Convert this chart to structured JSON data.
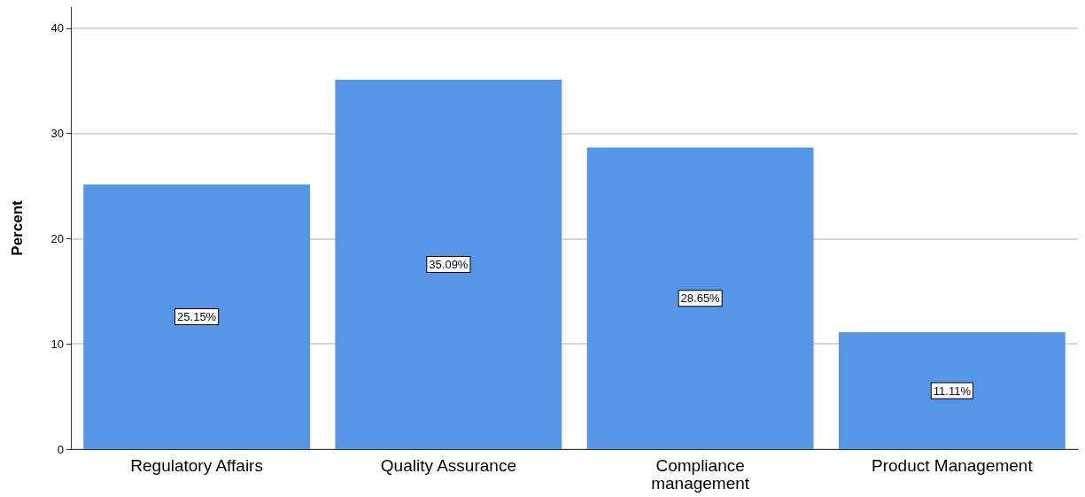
{
  "chart_data": {
    "type": "bar",
    "ylabel": "Percent",
    "categories": [
      "Regulatory Affairs",
      "Quality Assurance",
      "Compliance\nmanagement",
      "Product Management"
    ],
    "values": [
      25.15,
      35.09,
      28.65,
      11.11
    ],
    "value_labels": [
      "25.15%",
      "35.09%",
      "28.65%",
      "11.11%"
    ],
    "color": "#5596e6",
    "ylim": [
      0,
      42
    ],
    "yticks": [
      0,
      10,
      20,
      30,
      40
    ],
    "grid": "y"
  }
}
